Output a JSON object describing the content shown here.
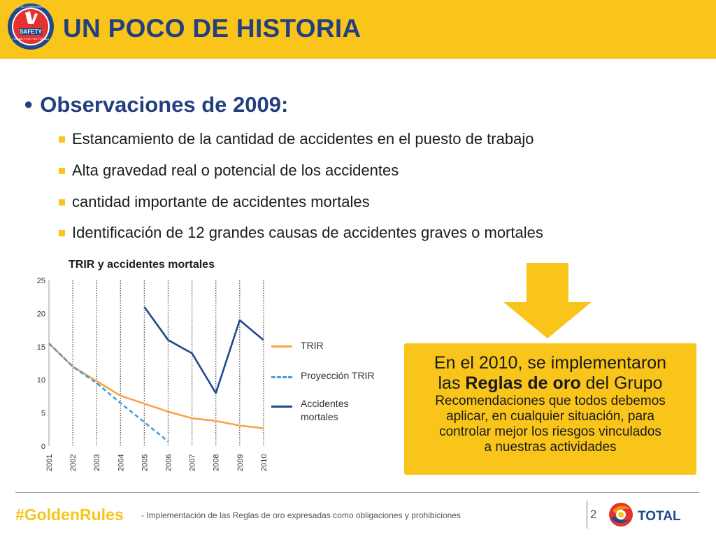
{
  "header": {
    "title": "UN POCO DE HISTORIA",
    "badge": {
      "icon": "safety-commitment-badge-icon",
      "text_top": "TOTAL COMMITMENT",
      "text_center": "SAFETY",
      "text_bottom": "FOR ME, FOR YOU FOR ALL"
    },
    "color": "#F9C51B"
  },
  "content": {
    "heading": "Observaciones de 2009:",
    "bullets": [
      "Estancamiento de la cantidad de accidentes en el puesto de trabajo",
      "Alta gravedad real o potencial de los accidentes",
      "cantidad importante de accidentes mortales",
      "Identificación de 12 grandes causas de accidentes graves o mortales"
    ]
  },
  "chart_data": {
    "type": "line",
    "title": "TRIR y accidentes mortales",
    "categories": [
      "2001",
      "2002",
      "2003",
      "2004",
      "2005",
      "2006",
      "2007",
      "2008",
      "2009",
      "2010"
    ],
    "ylim": [
      0,
      25
    ],
    "yticks": [
      "0",
      "5",
      "10",
      "15",
      "20",
      "25"
    ],
    "grid": "vertical dotted",
    "legend_position": "right",
    "series": [
      {
        "name": "TRIR",
        "color": "#F7A443",
        "style": "solid",
        "values": [
          15.5,
          12,
          9.8,
          7.6,
          6.4,
          5.2,
          4.2,
          3.8,
          3.1,
          2.7
        ]
      },
      {
        "name": "Proyección TRIR",
        "color": "#4A9BD3",
        "style": "dashed",
        "values": [
          15.5,
          12,
          9.5,
          6.5,
          3.6,
          0.7,
          null,
          null,
          null,
          null
        ]
      },
      {
        "name": "Accidentes mortales",
        "color": "#1E4A8C",
        "style": "solid",
        "values": [
          null,
          null,
          null,
          null,
          21,
          16,
          14,
          8,
          19,
          16
        ]
      }
    ]
  },
  "legend": {
    "trir": "TRIR",
    "proj": "Proyección TRIR",
    "acc1": "Accidentes",
    "acc2": "mortales"
  },
  "callout": {
    "line1": "En el 2010, se implementaron",
    "line2_pre": "las ",
    "line2_bold": "Reglas de oro",
    "line2_post": " del Grupo",
    "sub1": "Recomendaciones que todos debemos",
    "sub2": "aplicar, en cualquier situación, para",
    "sub3": "controlar mejor los riesgos vinculados",
    "sub4": "a nuestras actividades",
    "arrow_icon": "down-arrow-icon"
  },
  "footer": {
    "hashtag": "#GoldenRules",
    "text": "- Implementación de las Reglas de oro expresadas como obligaciones y prohibiciones",
    "page": "2",
    "logo_text": "TOTAL",
    "logo_icon": "total-logo-icon"
  }
}
